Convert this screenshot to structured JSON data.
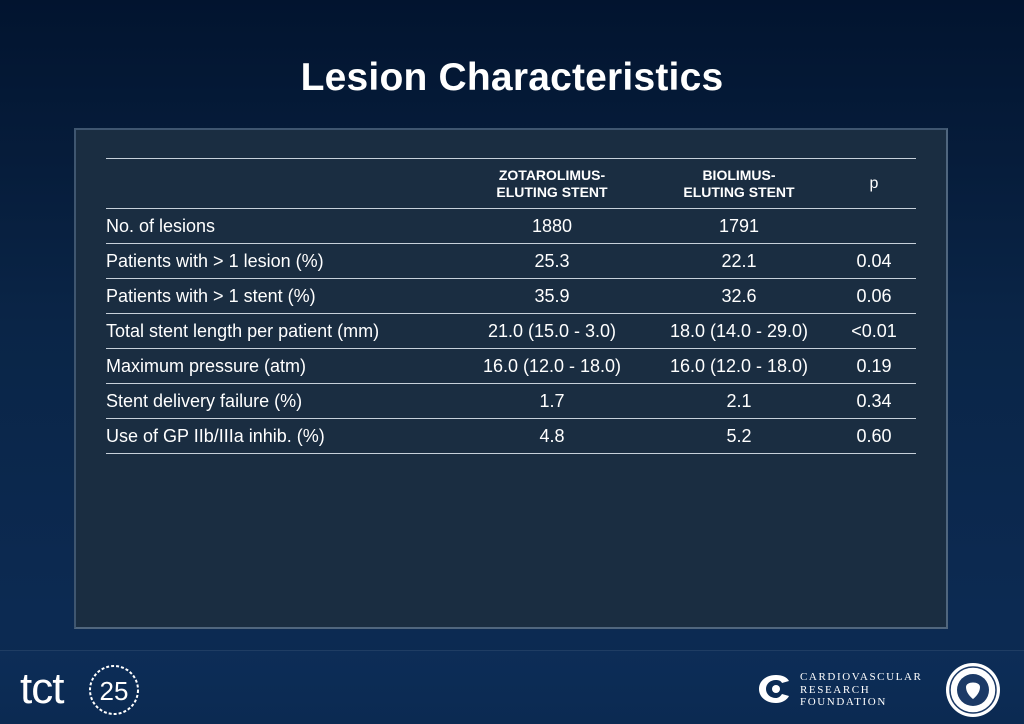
{
  "title": "Lesion Characteristics",
  "table": {
    "headers": [
      "",
      "ZOTAROLIMUS-\nELUTING STENT",
      "BIOLIMUS-\nELUTING STENT",
      "p"
    ],
    "header_lines": {
      "col2_line1": "ZOTAROLIMUS-",
      "col2_line2": "ELUTING STENT",
      "col3_line1": "BIOLIMUS-",
      "col3_line2": "ELUTING STENT",
      "col4": "p"
    },
    "rows": [
      {
        "label": "No. of lesions",
        "zes": "1880",
        "bes": "1791",
        "p": ""
      },
      {
        "label": "Patients with > 1 lesion (%)",
        "zes": "25.3",
        "bes": "22.1",
        "p": "0.04"
      },
      {
        "label": "Patients with > 1 stent (%)",
        "zes": "35.9",
        "bes": "32.6",
        "p": "0.06"
      },
      {
        "label": "Total stent length per patient (mm)",
        "zes": "21.0 (15.0 - 3.0)",
        "bes": "18.0 (14.0 - 29.0)",
        "p": "<0.01"
      },
      {
        "label": "Maximum pressure (atm)",
        "zes": "16.0 (12.0 - 18.0)",
        "bes": "16.0 (12.0 - 18.0)",
        "p": "0.19"
      },
      {
        "label": "Stent delivery failure (%)",
        "zes": "1.7",
        "bes": "2.1",
        "p": "0.34"
      },
      {
        "label": "Use of GP IIb/IIIa inhib. (%)",
        "zes": "4.8",
        "bes": "5.2",
        "p": "0.60"
      }
    ]
  },
  "footer": {
    "tct_logo_text": "tct",
    "tct_number": "25",
    "crf_line1": "CARDIOVASCULAR",
    "crf_line2": "RESEARCH",
    "crf_line3": "FOUNDATION",
    "seal_icon": "college-seal-icon"
  },
  "colors": {
    "background_top": "#02142f",
    "background_bottom": "#0c2a52",
    "panel": "#1a2d41",
    "text": "#ffffff",
    "rule": "#c7d0da"
  }
}
